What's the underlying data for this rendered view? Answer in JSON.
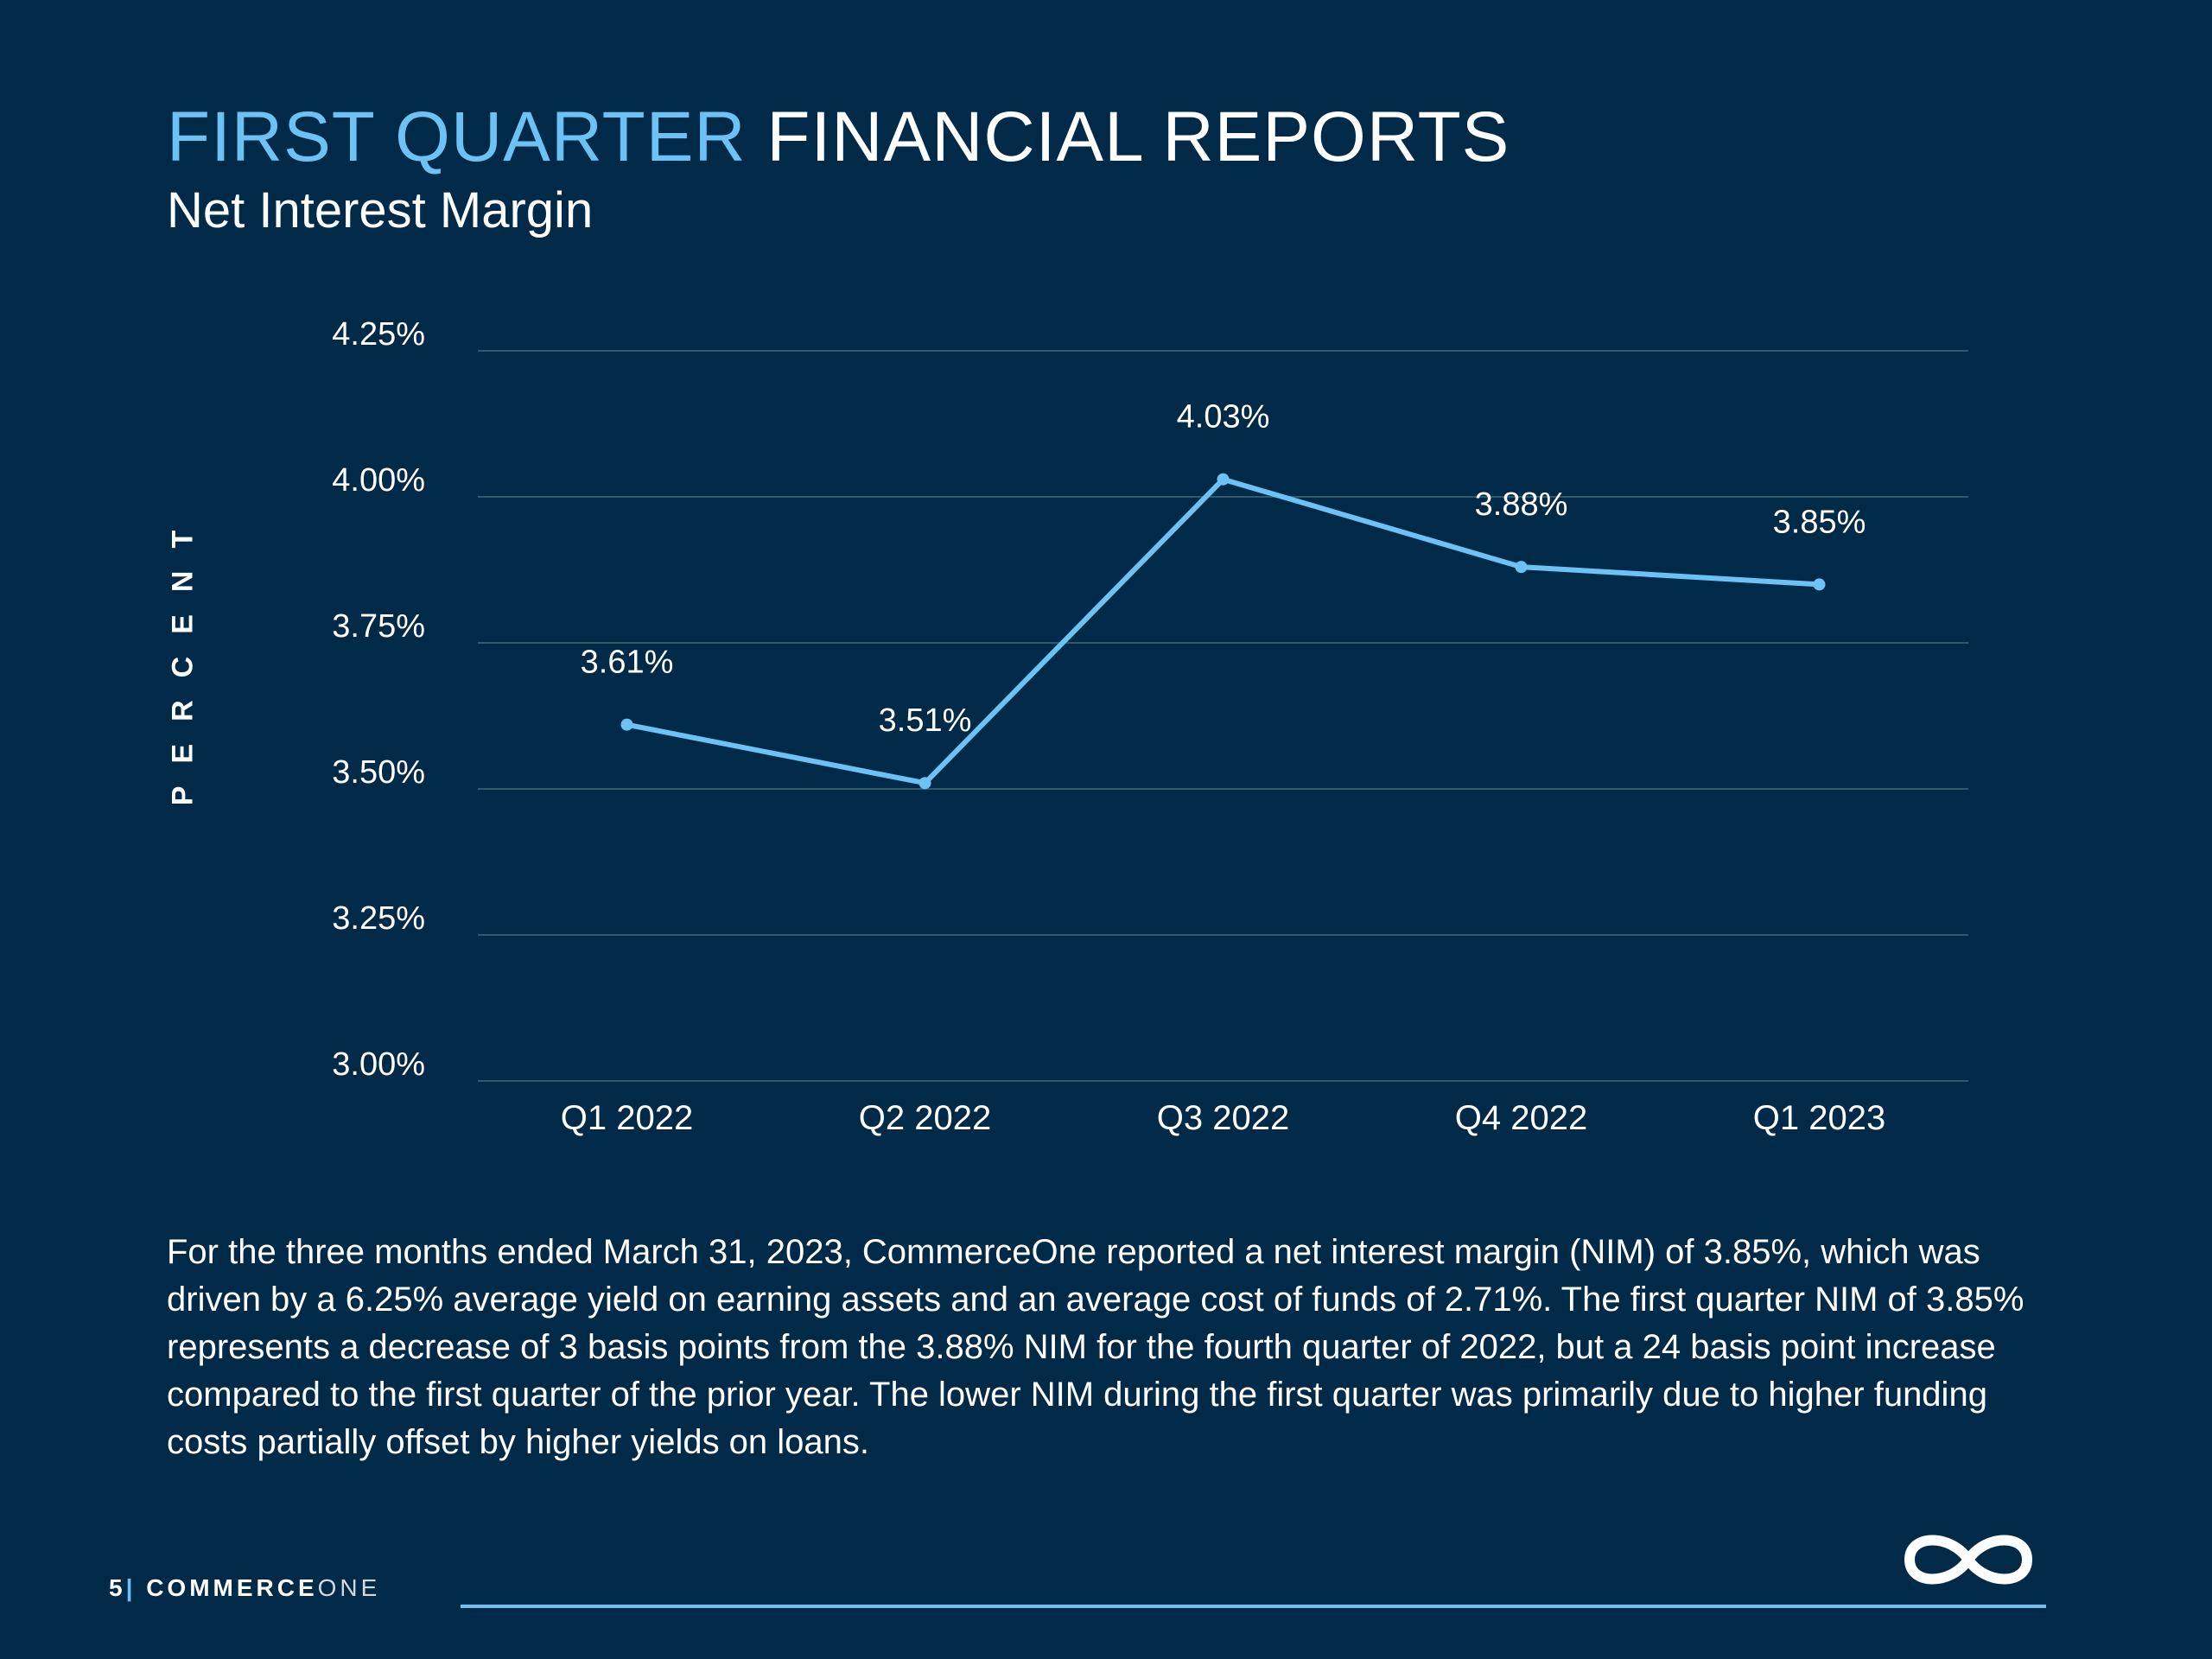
{
  "header": {
    "title_accent": "FIRST QUARTER",
    "title_rest": "FINANCIAL REPORTS",
    "subtitle": "Net Interest Margin"
  },
  "colors": {
    "background": "#012a49",
    "accent": "#6cc2f5",
    "grid": "#2f5a6e",
    "text": "#ffffff"
  },
  "chart_data": {
    "type": "line",
    "categories": [
      "Q1 2022",
      "Q2 2022",
      "Q3 2022",
      "Q4 2022",
      "Q1 2023"
    ],
    "series": [
      {
        "values": [
          3.61,
          3.51,
          4.03,
          3.88,
          3.85
        ],
        "data_labels": [
          "3.61%",
          "3.51%",
          "4.03%",
          "3.88%",
          "3.85%"
        ]
      }
    ],
    "ylabel": "PERCENT",
    "ylim": [
      3.0,
      4.25
    ],
    "yticks": [
      3.0,
      3.25,
      3.5,
      3.75,
      4.0,
      4.25
    ],
    "ytick_labels": [
      "3.00%",
      "3.25%",
      "3.50%",
      "3.75%",
      "4.00%",
      "4.25%"
    ],
    "grid": true,
    "legend": "none"
  },
  "body_text": "For the three months ended March 31, 2023, CommerceOne reported a net interest margin (NIM) of 3.85%, which was driven by a 6.25% average yield on earning assets and an average cost of funds of 2.71%. The first quarter NIM of 3.85% represents a decrease of 3 basis points from the 3.88% NIM for the fourth quarter of 2022, but a 24 basis point increase compared to the first quarter of the prior year. The lower NIM during the first quarter was primarily due to higher funding costs partially offset by higher yields on loans.",
  "footer": {
    "page_number": "5",
    "separator": "|",
    "brand_bold": "COMMERCE",
    "brand_light": "ONE",
    "logo_icon": "infinity-icon"
  }
}
